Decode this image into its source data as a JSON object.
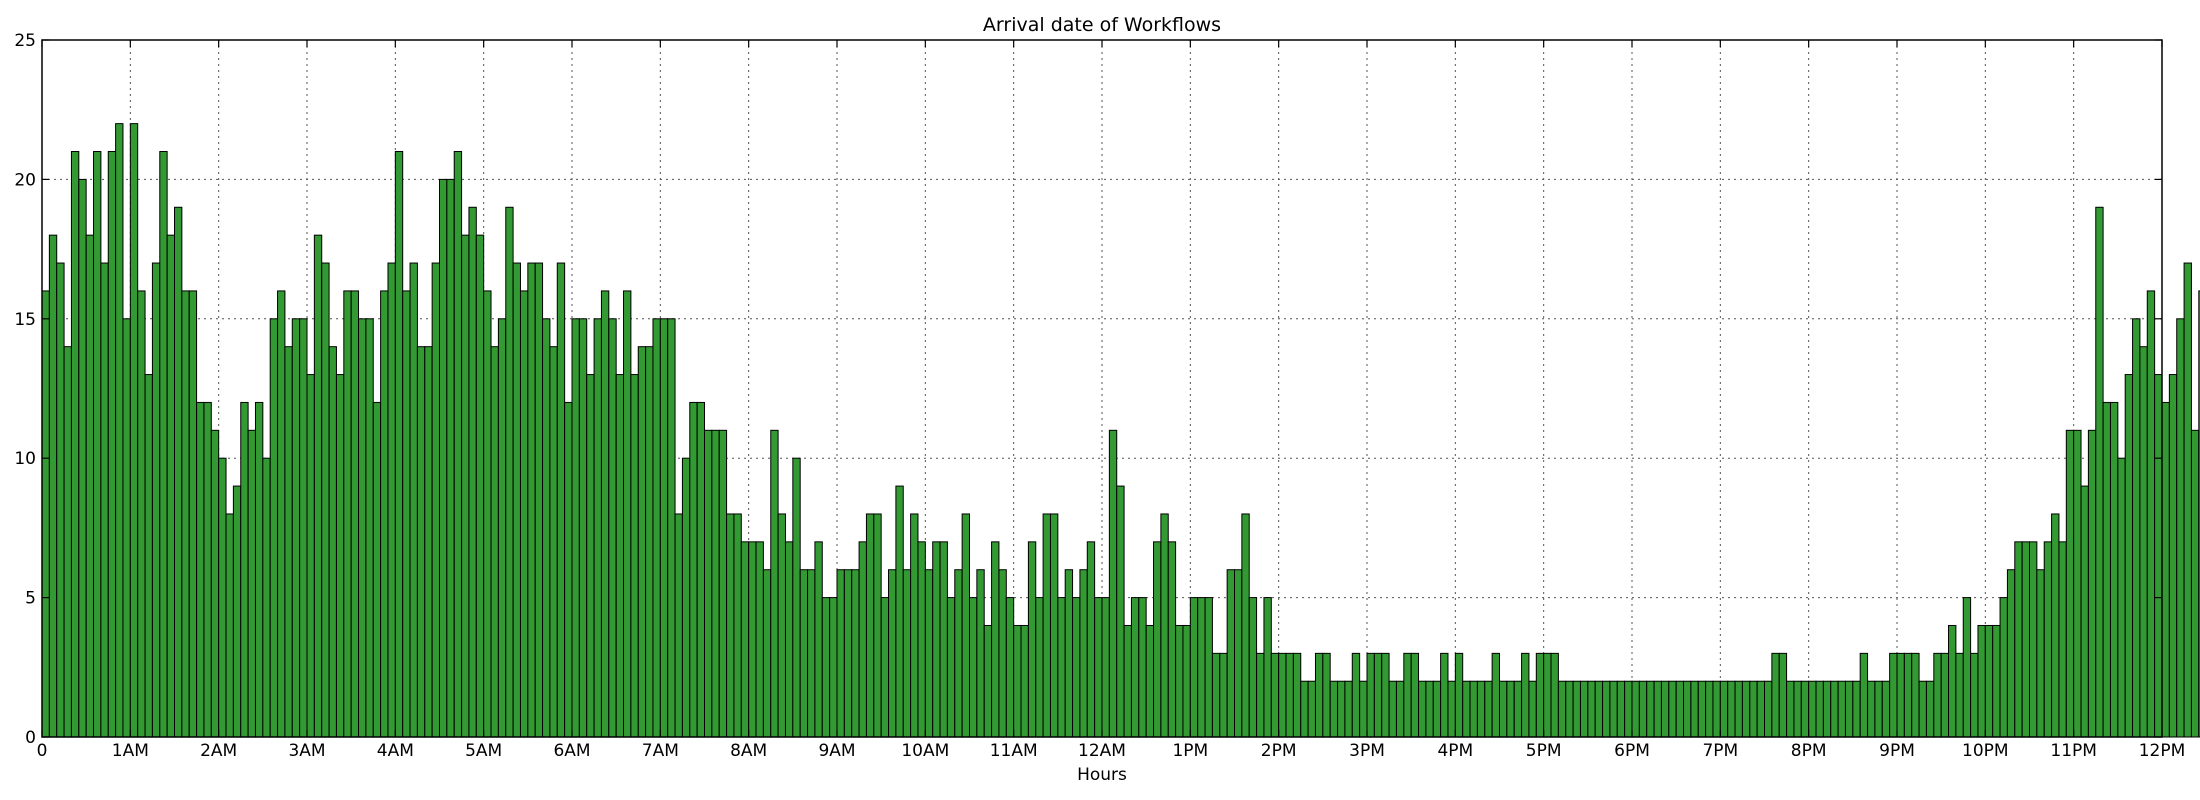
{
  "chart_data": {
    "type": "bar",
    "title": "Arrival date of Workflows",
    "xlabel": "Hours",
    "ylabel": "",
    "xlim": [
      0,
      288
    ],
    "ylim": [
      0,
      25
    ],
    "bin_width": 1,
    "grid": true,
    "bar_color": "#339933",
    "edge_color": "#000000",
    "x_ticks": [
      0,
      12,
      24,
      36,
      48,
      60,
      72,
      84,
      96,
      108,
      120,
      132,
      144,
      156,
      168,
      180,
      192,
      204,
      216,
      228,
      240,
      252,
      264,
      276,
      288
    ],
    "x_tick_labels": [
      "0",
      "1AM",
      "2AM",
      "3AM",
      "4AM",
      "5AM",
      "6AM",
      "7AM",
      "8AM",
      "9AM",
      "10AM",
      "11AM",
      "12AM",
      "1PM",
      "2PM",
      "3PM",
      "4PM",
      "5PM",
      "6PM",
      "7PM",
      "8PM",
      "9PM",
      "10PM",
      "11PM",
      "12PM"
    ],
    "y_ticks": [
      0,
      5,
      10,
      15,
      20,
      25
    ],
    "y_tick_labels": [
      "0",
      "5",
      "10",
      "15",
      "20",
      "25"
    ],
    "values": [
      16,
      18,
      17,
      14,
      21,
      20,
      18,
      21,
      17,
      21,
      22,
      15,
      22,
      16,
      13,
      17,
      21,
      18,
      19,
      16,
      16,
      12,
      12,
      11,
      10,
      8,
      9,
      12,
      11,
      12,
      10,
      15,
      16,
      14,
      15,
      15,
      13,
      18,
      17,
      14,
      13,
      16,
      16,
      15,
      15,
      12,
      16,
      17,
      21,
      16,
      17,
      14,
      14,
      17,
      20,
      20,
      21,
      18,
      19,
      18,
      16,
      14,
      15,
      19,
      17,
      16,
      17,
      17,
      15,
      14,
      17,
      12,
      15,
      15,
      13,
      15,
      16,
      15,
      13,
      16,
      13,
      14,
      14,
      15,
      15,
      15,
      8,
      10,
      12,
      12,
      11,
      11,
      11,
      8,
      8,
      7,
      7,
      7,
      6,
      11,
      8,
      7,
      10,
      6,
      6,
      7,
      5,
      5,
      6,
      6,
      6,
      7,
      8,
      8,
      5,
      6,
      9,
      6,
      8,
      7,
      6,
      7,
      7,
      5,
      6,
      8,
      5,
      6,
      4,
      7,
      6,
      5,
      4,
      4,
      7,
      5,
      8,
      8,
      5,
      6,
      5,
      6,
      7,
      5,
      5,
      11,
      9,
      4,
      5,
      5,
      4,
      7,
      8,
      7,
      4,
      4,
      5,
      5,
      5,
      3,
      3,
      6,
      6,
      8,
      5,
      3,
      5,
      3,
      3,
      3,
      3,
      2,
      2,
      3,
      3,
      2,
      2,
      2,
      3,
      2,
      3,
      3,
      3,
      2,
      2,
      3,
      3,
      2,
      2,
      2,
      3,
      2,
      3,
      2,
      2,
      2,
      2,
      3,
      2,
      2,
      2,
      3,
      2,
      3,
      3,
      3,
      2,
      2,
      2,
      2,
      2,
      2,
      2,
      2,
      2,
      2,
      2,
      2,
      2,
      2,
      2,
      2,
      2,
      2,
      2,
      2,
      2,
      2,
      2,
      2,
      2,
      2,
      2,
      2,
      2,
      3,
      3,
      2,
      2,
      2,
      2,
      2,
      2,
      2,
      2,
      2,
      2,
      3,
      2,
      2,
      2,
      3,
      3,
      3,
      3,
      2,
      2,
      3,
      3,
      4,
      3,
      5,
      3,
      4,
      4,
      4,
      5,
      6,
      7,
      7,
      7,
      6,
      7,
      8,
      7,
      11,
      11,
      9,
      11,
      19,
      12,
      12,
      10,
      13,
      15,
      14,
      16,
      13,
      12,
      13,
      15,
      17,
      11,
      16
    ]
  }
}
